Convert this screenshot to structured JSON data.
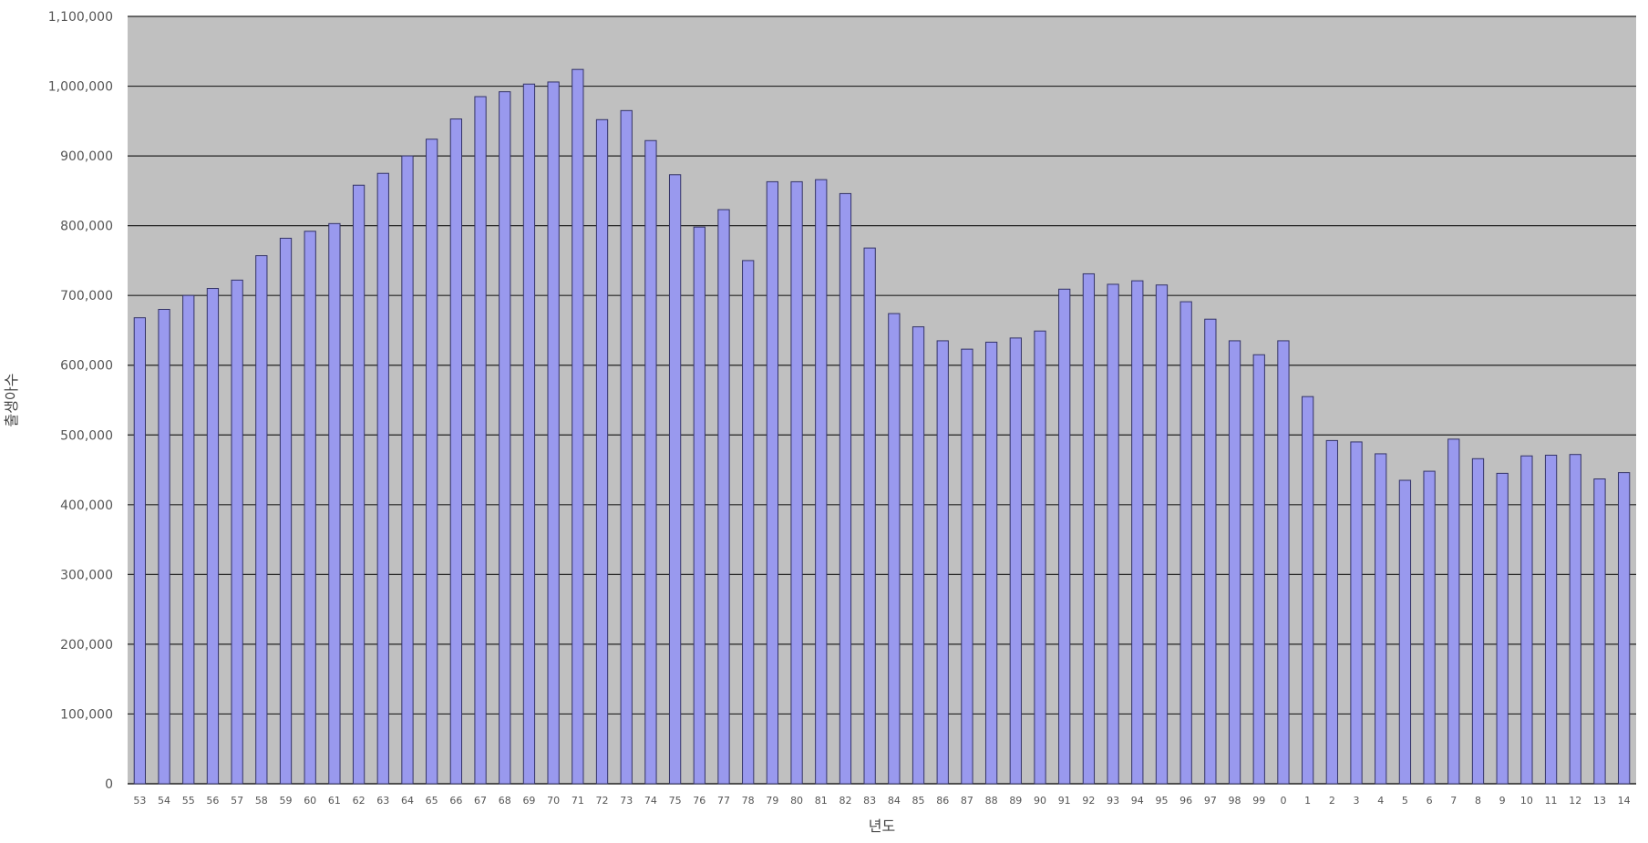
{
  "chart_data": {
    "type": "bar",
    "xlabel": "년도",
    "ylabel": "출생아수",
    "ylim": [
      0,
      1100000
    ],
    "yticks": [
      0,
      100000,
      200000,
      300000,
      400000,
      500000,
      600000,
      700000,
      800000,
      900000,
      1000000,
      1100000
    ],
    "ytick_labels": [
      "0",
      "100,000",
      "200,000",
      "300,000",
      "400,000",
      "500,000",
      "600,000",
      "700,000",
      "800,000",
      "900,000",
      "1,000,000",
      "1,100,000"
    ],
    "grid": true,
    "colors": {
      "plot_background": "#c0c0c0",
      "bar_fill": "#9999ee",
      "bar_stroke": "#333366",
      "grid": "#222222"
    },
    "categories": [
      "53",
      "54",
      "55",
      "56",
      "57",
      "58",
      "59",
      "60",
      "61",
      "62",
      "63",
      "64",
      "65",
      "66",
      "67",
      "68",
      "69",
      "70",
      "71",
      "72",
      "73",
      "74",
      "75",
      "76",
      "77",
      "78",
      "79",
      "80",
      "81",
      "82",
      "83",
      "84",
      "85",
      "86",
      "87",
      "88",
      "89",
      "90",
      "91",
      "92",
      "93",
      "94",
      "95",
      "96",
      "97",
      "98",
      "99",
      "0",
      "1",
      "2",
      "3",
      "4",
      "5",
      "6",
      "7",
      "8",
      "9",
      "10",
      "11",
      "12",
      "13",
      "14"
    ],
    "values": [
      668000,
      680000,
      700000,
      710000,
      722000,
      757000,
      782000,
      792000,
      803000,
      858000,
      875000,
      900000,
      924000,
      953000,
      985000,
      992000,
      1003000,
      1006000,
      1024000,
      952000,
      965000,
      922000,
      873000,
      798000,
      823000,
      750000,
      863000,
      863000,
      866000,
      846000,
      768000,
      674000,
      655000,
      635000,
      623000,
      633000,
      639000,
      649000,
      709000,
      731000,
      716000,
      721000,
      715000,
      691000,
      666000,
      635000,
      615000,
      635000,
      555000,
      492000,
      490000,
      473000,
      435000,
      448000,
      494000,
      466000,
      445000,
      470000,
      471000,
      472000,
      437000,
      446000
    ]
  }
}
